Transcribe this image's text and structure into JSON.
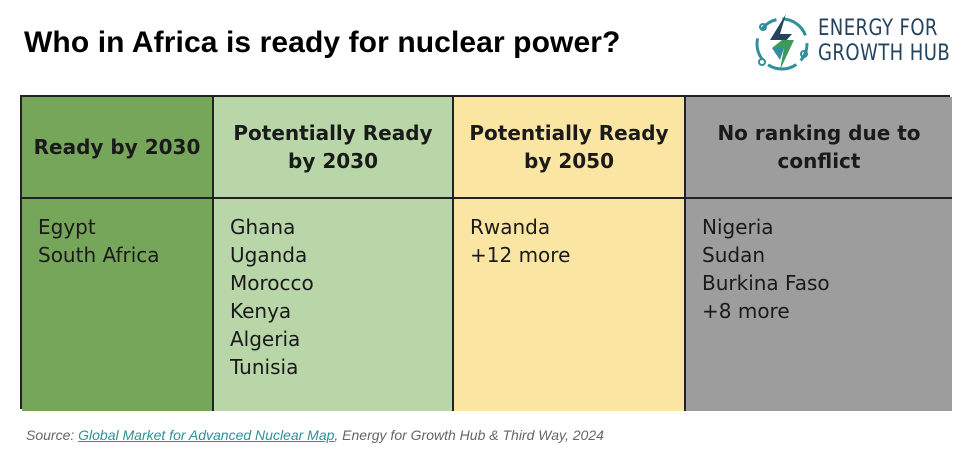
{
  "title": "Who in Africa is ready for nuclear power?",
  "logo": {
    "line1": "ENERGY FOR",
    "line2": "GROWTH HUB",
    "colors": {
      "text": "#24445e",
      "green": "#3d9a5a",
      "teal": "#2f8f9d",
      "navy": "#24445e"
    }
  },
  "chart_data": {
    "type": "table",
    "columns": [
      {
        "header": "Ready by 2030",
        "color": "#76a65a",
        "items": [
          "Egypt",
          "South Africa"
        ]
      },
      {
        "header": "Potentially Ready by 2030",
        "color": "#b8d6a7",
        "items": [
          "Ghana",
          "Uganda",
          "Morocco",
          "Kenya",
          "Algeria",
          "Tunisia"
        ]
      },
      {
        "header": "Potentially Ready by 2050",
        "color": "#fbe5a3",
        "items": [
          "Rwanda",
          "+12 more"
        ]
      },
      {
        "header": "No ranking due to conflict",
        "color": "#9d9d9d",
        "items": [
          "Nigeria",
          "Sudan",
          "Burkina Faso",
          "+8 more"
        ]
      }
    ]
  },
  "source": {
    "prefix": "Source: ",
    "link_text": "Global Market for Advanced Nuclear Map",
    "suffix": ", Energy for Growth Hub & Third Way, 2024"
  }
}
